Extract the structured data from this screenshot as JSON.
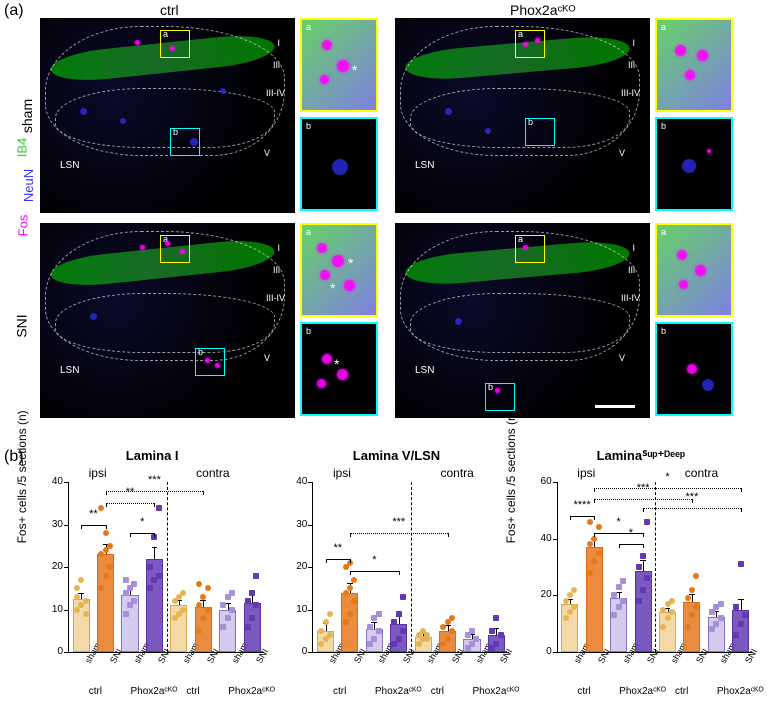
{
  "panel_a_label": "(a)",
  "panel_b_label": "(b)",
  "columns": {
    "ctrl": "ctrl",
    "ko": "Phox2aᶜᴷᴼ"
  },
  "rows": {
    "sham": "sham",
    "sni": "SNI"
  },
  "stain_labels": {
    "fos": "Fos",
    "neun": "NeuN",
    "ib4": "IB4"
  },
  "stain_colors": {
    "fos": "#ff00ff",
    "neun": "#3030ff",
    "ib4": "#30d030"
  },
  "lamina_labels": [
    "I",
    "IIi",
    "III-IV",
    "V"
  ],
  "lsn": "LSN",
  "inset_labels": {
    "a": "a",
    "b": "b"
  },
  "charts": [
    {
      "title": "Lamina I",
      "ylim": [
        0,
        40
      ],
      "ytick": 10,
      "ylabel": "Fos+ cells /5 sections (n)",
      "regions": {
        "ipsi": "ipsi",
        "contra": "contra"
      },
      "bars": [
        {
          "k": "ctrl-sham",
          "mean": 12.5,
          "sem": 1.2,
          "pts": [
            10,
            11,
            12,
            15,
            17,
            9,
            13
          ]
        },
        {
          "k": "ctrl-sni",
          "mean": 23,
          "sem": 2.2,
          "pts": [
            15,
            18,
            20,
            23,
            24,
            25,
            34,
            28
          ]
        },
        {
          "k": "ko-sham",
          "mean": 13.5,
          "sem": 1.4,
          "pts": [
            9,
            11,
            12,
            14,
            15,
            16,
            17
          ]
        },
        {
          "k": "ko-sni",
          "mean": 22,
          "sem": 2.5,
          "pts": [
            15,
            17,
            18,
            20,
            27,
            34
          ]
        },
        {
          "k": "ctrl-sham",
          "mean": 11,
          "sem": 1.0,
          "pts": [
            8,
            9,
            10,
            12,
            13,
            14
          ]
        },
        {
          "k": "ctrl-sni",
          "mean": 10.5,
          "sem": 1.6,
          "pts": [
            5,
            8,
            10,
            11,
            13,
            15,
            16
          ]
        },
        {
          "k": "ko-sham",
          "mean": 10,
          "sem": 1.3,
          "pts": [
            6,
            8,
            10,
            11,
            13,
            14
          ]
        },
        {
          "k": "ko-sni",
          "mean": 11.5,
          "sem": 2.2,
          "pts": [
            6,
            8,
            11,
            12,
            14,
            18
          ]
        }
      ],
      "sig": [
        {
          "type": "solid",
          "from": 0,
          "to": 1,
          "y": 30,
          "text": "**"
        },
        {
          "type": "solid",
          "from": 2,
          "to": 3,
          "y": 28,
          "text": "*"
        },
        {
          "type": "dotted",
          "from": 1,
          "to": 3,
          "y": 35,
          "text": "**"
        },
        {
          "type": "dotted",
          "from": 1,
          "to": 5,
          "y": 38,
          "text": "***"
        }
      ]
    },
    {
      "title": "Lamina V/LSN",
      "ylim": [
        0,
        40
      ],
      "ytick": 10,
      "ylabel": "",
      "regions": {
        "ipsi": "ipsi",
        "contra": "contra"
      },
      "bars": [
        {
          "k": "ctrl-sham",
          "mean": 5,
          "sem": 1.5,
          "pts": [
            2,
            3,
            4,
            5,
            7,
            9
          ]
        },
        {
          "k": "ctrl-sni",
          "mean": 14,
          "sem": 2.0,
          "pts": [
            7,
            9,
            12,
            14,
            15,
            17,
            20,
            21
          ]
        },
        {
          "k": "ko-sham",
          "mean": 5.5,
          "sem": 1.4,
          "pts": [
            2,
            3,
            5,
            6,
            8,
            9
          ]
        },
        {
          "k": "ko-sni",
          "mean": 6.5,
          "sem": 1.8,
          "pts": [
            2,
            3,
            5,
            7,
            9,
            13
          ]
        },
        {
          "k": "ctrl-sham",
          "mean": 3.5,
          "sem": 0.8,
          "pts": [
            2,
            3,
            3,
            4,
            5,
            4
          ]
        },
        {
          "k": "ctrl-sni",
          "mean": 5,
          "sem": 1.2,
          "pts": [
            2,
            3,
            5,
            6,
            7,
            8
          ]
        },
        {
          "k": "ko-sham",
          "mean": 3,
          "sem": 0.9,
          "pts": [
            1,
            2,
            3,
            4,
            5
          ]
        },
        {
          "k": "ko-sni",
          "mean": 4,
          "sem": 1.3,
          "pts": [
            1,
            2,
            4,
            5,
            8
          ]
        }
      ],
      "sig": [
        {
          "type": "solid",
          "from": 0,
          "to": 1,
          "y": 22,
          "text": "**"
        },
        {
          "type": "solid",
          "from": 1,
          "to": 3,
          "y": 19,
          "text": "*"
        },
        {
          "type": "dotted",
          "from": 1,
          "to": 5,
          "y": 28,
          "text": "***"
        }
      ]
    },
    {
      "title": "Laminaᔆᵘᵖ⁺ᴰᵉᵉᵖ",
      "ylim": [
        0,
        60
      ],
      "ytick": 20,
      "ylabel": "Fos+ cells /5 sections (n)",
      "regions": {
        "ipsi": "ipsi",
        "contra": "contra"
      },
      "bars": [
        {
          "k": "ctrl-sham",
          "mean": 17,
          "sem": 1.5,
          "pts": [
            12,
            14,
            16,
            18,
            20,
            22
          ]
        },
        {
          "k": "ctrl-sni",
          "mean": 37,
          "sem": 2.5,
          "pts": [
            28,
            32,
            35,
            38,
            40,
            44,
            46
          ]
        },
        {
          "k": "ko-sham",
          "mean": 19,
          "sem": 1.8,
          "pts": [
            13,
            16,
            18,
            20,
            23,
            25
          ]
        },
        {
          "k": "ko-sni",
          "mean": 28.5,
          "sem": 3.5,
          "pts": [
            18,
            22,
            26,
            30,
            34,
            46
          ]
        },
        {
          "k": "ctrl-sham",
          "mean": 14,
          "sem": 1.3,
          "pts": [
            9,
            12,
            14,
            15,
            17,
            18
          ]
        },
        {
          "k": "ctrl-sni",
          "mean": 17.5,
          "sem": 2.5,
          "pts": [
            9,
            13,
            16,
            19,
            22,
            27
          ]
        },
        {
          "k": "ko-sham",
          "mean": 12.5,
          "sem": 1.5,
          "pts": [
            8,
            10,
            12,
            14,
            16,
            17
          ]
        },
        {
          "k": "ko-sni",
          "mean": 15,
          "sem": 3.5,
          "pts": [
            6,
            10,
            13,
            16,
            31
          ]
        }
      ],
      "sig": [
        {
          "type": "solid",
          "from": 0,
          "to": 1,
          "y": 48,
          "text": "****"
        },
        {
          "type": "solid",
          "from": 1,
          "to": 3,
          "y": 42,
          "text": "*"
        },
        {
          "type": "solid",
          "from": 2,
          "to": 3,
          "y": 38,
          "text": "*"
        },
        {
          "type": "dotted",
          "from": 1,
          "to": 5,
          "y": 54,
          "text": "***"
        },
        {
          "type": "dotted",
          "from": 1,
          "to": 7,
          "y": 58,
          "text": "*"
        },
        {
          "type": "dotted",
          "from": 3,
          "to": 7,
          "y": 51,
          "text": "***"
        }
      ]
    }
  ],
  "x_labels": [
    "sham",
    "SNI",
    "sham",
    "SNI",
    "sham",
    "SNI",
    "sham",
    "SNI"
  ],
  "x_group_labels": [
    "ctrl",
    "Phox2aᶜᴷᴼ",
    "ctrl",
    "Phox2aᶜᴷᴼ"
  ],
  "colors": {
    "ctrl_sham": "#e6b450",
    "ctrl_sni": "#e67818",
    "ko_sham": "#a890d8",
    "ko_sni": "#6438b0",
    "background": "#ffffff"
  }
}
